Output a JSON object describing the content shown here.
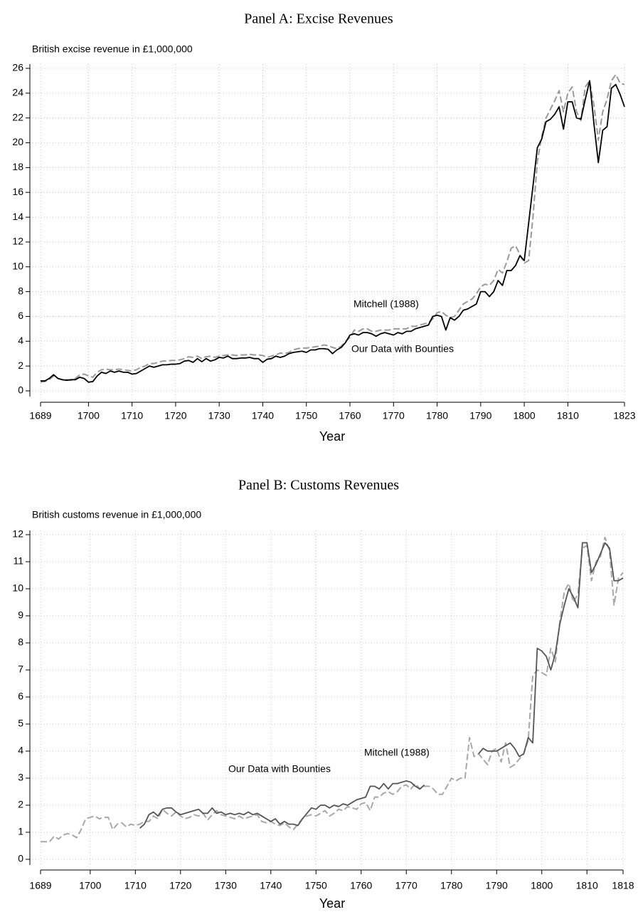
{
  "chart_data": [
    {
      "type": "line",
      "title": "Panel A: Excise Revenues",
      "ylabel": "British excise revenue in £1,000,000",
      "xlabel": "Year",
      "x": [
        1689,
        1690,
        1691,
        1692,
        1693,
        1694,
        1695,
        1696,
        1697,
        1698,
        1699,
        1700,
        1701,
        1702,
        1703,
        1704,
        1705,
        1706,
        1707,
        1708,
        1709,
        1710,
        1711,
        1712,
        1713,
        1714,
        1715,
        1716,
        1717,
        1718,
        1719,
        1720,
        1721,
        1722,
        1723,
        1724,
        1725,
        1726,
        1727,
        1728,
        1729,
        1730,
        1731,
        1732,
        1733,
        1734,
        1735,
        1736,
        1737,
        1738,
        1739,
        1740,
        1741,
        1742,
        1743,
        1744,
        1745,
        1746,
        1747,
        1748,
        1749,
        1750,
        1751,
        1752,
        1753,
        1754,
        1755,
        1756,
        1757,
        1758,
        1759,
        1760,
        1761,
        1762,
        1763,
        1764,
        1765,
        1766,
        1767,
        1768,
        1769,
        1770,
        1771,
        1772,
        1773,
        1774,
        1775,
        1776,
        1777,
        1778,
        1779,
        1780,
        1781,
        1782,
        1783,
        1784,
        1785,
        1786,
        1787,
        1788,
        1789,
        1790,
        1791,
        1792,
        1793,
        1794,
        1795,
        1796,
        1797,
        1798,
        1799,
        1800,
        1801,
        1802,
        1803,
        1804,
        1805,
        1806,
        1807,
        1808,
        1809,
        1810,
        1811,
        1812,
        1813,
        1814,
        1815,
        1816,
        1817,
        1818,
        1819,
        1820,
        1821,
        1822,
        1823
      ],
      "series": [
        {
          "name": "Mitchell (1988)",
          "color": "#9a9a9a",
          "style": "dashed",
          "values": [
            0.7,
            0.75,
            0.9,
            1.2,
            1.0,
            0.9,
            0.9,
            0.85,
            1.0,
            1.3,
            1.35,
            1.2,
            1.1,
            1.5,
            1.7,
            1.75,
            1.7,
            1.7,
            1.75,
            1.7,
            1.65,
            1.6,
            1.7,
            1.9,
            2.0,
            2.2,
            2.2,
            2.3,
            2.4,
            2.4,
            2.45,
            2.45,
            2.5,
            2.6,
            2.75,
            2.7,
            2.8,
            2.6,
            2.75,
            2.8,
            2.7,
            2.8,
            2.85,
            2.9,
            2.9,
            2.85,
            2.9,
            2.9,
            2.95,
            2.9,
            2.9,
            2.85,
            2.7,
            2.8,
            2.9,
            3.05,
            3.0,
            3.1,
            3.3,
            3.4,
            3.45,
            3.45,
            3.5,
            3.55,
            3.6,
            3.7,
            3.65,
            3.5,
            3.4,
            3.6,
            4.0,
            4.3,
            4.9,
            4.8,
            5.0,
            5.0,
            4.8,
            4.8,
            4.9,
            4.9,
            4.9,
            5.0,
            5.0,
            5.0,
            5.0,
            5.2,
            5.2,
            5.3,
            5.4,
            5.5,
            5.8,
            6.3,
            6.4,
            6.1,
            5.9,
            6.0,
            6.5,
            7.0,
            7.2,
            7.4,
            7.8,
            8.4,
            8.6,
            8.5,
            8.9,
            9.8,
            9.5,
            10.4,
            11.5,
            11.7,
            11.0,
            10.3,
            10.5,
            14.0,
            18.5,
            20.5,
            22.0,
            22.7,
            23.4,
            24.2,
            22.5,
            24.0,
            24.5,
            22.5,
            21.8,
            24.5,
            25.0,
            23.0,
            20.2,
            22.5,
            23.5,
            25.0,
            25.5,
            24.8,
            24.7
          ]
        },
        {
          "name": "Our Data with Bounties",
          "color": "#000000",
          "style": "solid",
          "values": [
            0.8,
            0.8,
            1.0,
            1.3,
            1.0,
            0.9,
            0.85,
            0.9,
            0.9,
            1.1,
            1.0,
            0.7,
            0.75,
            1.2,
            1.5,
            1.4,
            1.6,
            1.5,
            1.6,
            1.5,
            1.5,
            1.35,
            1.4,
            1.6,
            1.8,
            2.0,
            1.9,
            2.0,
            2.1,
            2.1,
            2.15,
            2.15,
            2.2,
            2.4,
            2.45,
            2.3,
            2.6,
            2.35,
            2.6,
            2.4,
            2.5,
            2.7,
            2.65,
            2.8,
            2.6,
            2.6,
            2.65,
            2.65,
            2.7,
            2.6,
            2.6,
            2.3,
            2.55,
            2.6,
            2.8,
            2.7,
            2.8,
            3.0,
            3.1,
            3.15,
            3.2,
            3.1,
            3.3,
            3.3,
            3.4,
            3.4,
            3.35,
            3.0,
            3.3,
            3.5,
            3.9,
            4.5,
            4.6,
            4.5,
            4.7,
            4.7,
            4.6,
            4.4,
            4.6,
            4.7,
            4.6,
            4.5,
            4.7,
            4.6,
            4.8,
            4.8,
            5.0,
            5.1,
            5.2,
            5.3,
            6.0,
            6.1,
            6.0,
            4.9,
            5.9,
            5.7,
            6.0,
            6.5,
            6.6,
            6.8,
            7.0,
            8.0,
            8.0,
            7.6,
            8.0,
            8.9,
            8.5,
            9.7,
            9.7,
            10.1,
            10.9,
            10.5,
            13.5,
            16.5,
            19.6,
            20.3,
            21.7,
            21.9,
            22.3,
            22.9,
            21.1,
            23.3,
            23.3,
            22.0,
            21.9,
            23.5,
            25.0,
            21.5,
            18.4,
            21.0,
            21.3,
            24.4,
            24.7,
            23.9,
            22.9
          ]
        }
      ],
      "annotations": [
        {
          "text": "Mitchell (1988)",
          "color": "#9a9a9a"
        },
        {
          "text": "Our Data with Bounties",
          "color": "#000000"
        }
      ],
      "xlim": [
        1689,
        1823
      ],
      "xticks": [
        1689,
        1700,
        1710,
        1720,
        1730,
        1740,
        1750,
        1760,
        1770,
        1780,
        1790,
        1800,
        1810,
        1823
      ],
      "ylim": [
        0,
        26
      ],
      "yticks": [
        0,
        2,
        4,
        6,
        8,
        10,
        12,
        14,
        16,
        18,
        20,
        22,
        24,
        26
      ],
      "grid": true
    },
    {
      "type": "line",
      "title": "Panel B: Customs Revenues",
      "ylabel": "British customs revenue in £1,000,000",
      "xlabel": "Year",
      "x": [
        1689,
        1690,
        1691,
        1692,
        1693,
        1694,
        1695,
        1696,
        1697,
        1698,
        1699,
        1700,
        1701,
        1702,
        1703,
        1704,
        1705,
        1706,
        1707,
        1708,
        1709,
        1710,
        1711,
        1712,
        1713,
        1714,
        1715,
        1716,
        1717,
        1718,
        1719,
        1720,
        1721,
        1722,
        1723,
        1724,
        1725,
        1726,
        1727,
        1728,
        1729,
        1730,
        1731,
        1732,
        1733,
        1734,
        1735,
        1736,
        1737,
        1738,
        1739,
        1740,
        1741,
        1742,
        1743,
        1744,
        1745,
        1746,
        1747,
        1748,
        1749,
        1750,
        1751,
        1752,
        1753,
        1754,
        1755,
        1756,
        1757,
        1758,
        1759,
        1760,
        1761,
        1762,
        1763,
        1764,
        1765,
        1766,
        1767,
        1768,
        1769,
        1770,
        1771,
        1772,
        1773,
        1774,
        1775,
        1776,
        1777,
        1778,
        1779,
        1780,
        1781,
        1782,
        1783,
        1784,
        1785,
        1786,
        1787,
        1788,
        1789,
        1790,
        1791,
        1792,
        1793,
        1794,
        1795,
        1796,
        1797,
        1798,
        1799,
        1800,
        1801,
        1802,
        1803,
        1804,
        1805,
        1806,
        1807,
        1808,
        1809,
        1810,
        1811,
        1812,
        1813,
        1814,
        1815,
        1816,
        1817,
        1818
      ],
      "series": [
        {
          "name": "Mitchell (1988)",
          "color": "#a8a8a8",
          "style": "dashed",
          "values": [
            0.65,
            0.65,
            0.65,
            0.85,
            0.75,
            0.9,
            0.95,
            0.9,
            0.8,
            1.1,
            1.5,
            1.55,
            1.6,
            1.5,
            1.55,
            1.55,
            1.1,
            1.3,
            1.35,
            1.2,
            1.3,
            1.25,
            1.3,
            1.4,
            1.4,
            1.6,
            1.5,
            1.85,
            1.7,
            1.6,
            1.75,
            1.6,
            1.5,
            1.55,
            1.65,
            1.6,
            1.7,
            1.45,
            1.65,
            1.8,
            1.65,
            1.6,
            1.55,
            1.5,
            1.6,
            1.5,
            1.55,
            1.6,
            1.65,
            1.4,
            1.35,
            1.4,
            1.3,
            1.25,
            1.35,
            1.2,
            1.1,
            1.3,
            1.5,
            1.6,
            1.65,
            1.6,
            1.7,
            1.8,
            1.6,
            1.7,
            1.85,
            1.8,
            1.95,
            1.9,
            1.85,
            2.05,
            2.1,
            1.8,
            2.3,
            2.3,
            2.45,
            2.5,
            2.4,
            2.5,
            2.7,
            2.75,
            2.6,
            2.8,
            2.6,
            2.7,
            2.7,
            2.6,
            2.4,
            2.4,
            2.7,
            3.0,
            2.9,
            3.0,
            3.0,
            4.5,
            3.8,
            3.9,
            3.7,
            3.5,
            4.0,
            4.1,
            3.6,
            4.3,
            3.4,
            3.5,
            3.7,
            3.9,
            4.4,
            6.8,
            7.0,
            6.9,
            6.8,
            7.8,
            7.3,
            8.8,
            9.9,
            10.2,
            9.5,
            9.8,
            11.5,
            11.6,
            10.3,
            11.0,
            11.2,
            11.9,
            11.4,
            9.4,
            10.4,
            10.6
          ]
        },
        {
          "name": "Our Data with Bounties",
          "color": "#555555",
          "style": "solid",
          "values": [
            null,
            null,
            null,
            null,
            null,
            null,
            null,
            null,
            null,
            null,
            null,
            null,
            null,
            null,
            null,
            null,
            null,
            null,
            null,
            null,
            null,
            null,
            1.15,
            1.3,
            1.65,
            1.75,
            1.6,
            1.85,
            1.9,
            1.9,
            1.75,
            1.65,
            1.7,
            1.75,
            1.8,
            1.85,
            1.7,
            1.7,
            1.9,
            1.7,
            1.75,
            1.65,
            1.7,
            1.65,
            1.7,
            1.65,
            1.75,
            1.65,
            1.7,
            1.6,
            1.5,
            1.4,
            1.5,
            1.3,
            1.4,
            1.3,
            1.3,
            1.25,
            1.5,
            1.7,
            1.9,
            1.85,
            2.0,
            2.0,
            1.9,
            2.0,
            1.95,
            2.05,
            2.0,
            2.1,
            2.2,
            2.25,
            2.3,
            2.7,
            2.7,
            2.6,
            2.8,
            2.6,
            2.8,
            2.8,
            2.85,
            2.9,
            2.85,
            2.7,
            2.6,
            2.75,
            null,
            null,
            null,
            null,
            null,
            null,
            null,
            null,
            null,
            null,
            null,
            3.9,
            4.1,
            4.0,
            4.0,
            4.0,
            4.1,
            4.2,
            4.3,
            4.1,
            3.8,
            3.9,
            4.5,
            4.3,
            7.8,
            7.7,
            7.5,
            7.0,
            7.6,
            8.7,
            9.4,
            10.0,
            9.7,
            9.3,
            11.7,
            11.7,
            10.6,
            10.9,
            11.3,
            11.7,
            11.5,
            10.3,
            10.3,
            10.4
          ]
        }
      ],
      "annotations": [
        {
          "text": "Mitchell (1988)",
          "color": "#a8a8a8"
        },
        {
          "text": "Our Data with Bounties",
          "color": "#000000"
        }
      ],
      "xlim": [
        1689,
        1818
      ],
      "xticks": [
        1689,
        1700,
        1710,
        1720,
        1730,
        1740,
        1750,
        1760,
        1770,
        1780,
        1790,
        1800,
        1810,
        1818
      ],
      "ylim": [
        0,
        12
      ],
      "yticks": [
        0,
        1,
        2,
        3,
        4,
        5,
        6,
        7,
        8,
        9,
        10,
        11,
        12
      ],
      "grid": true
    }
  ]
}
